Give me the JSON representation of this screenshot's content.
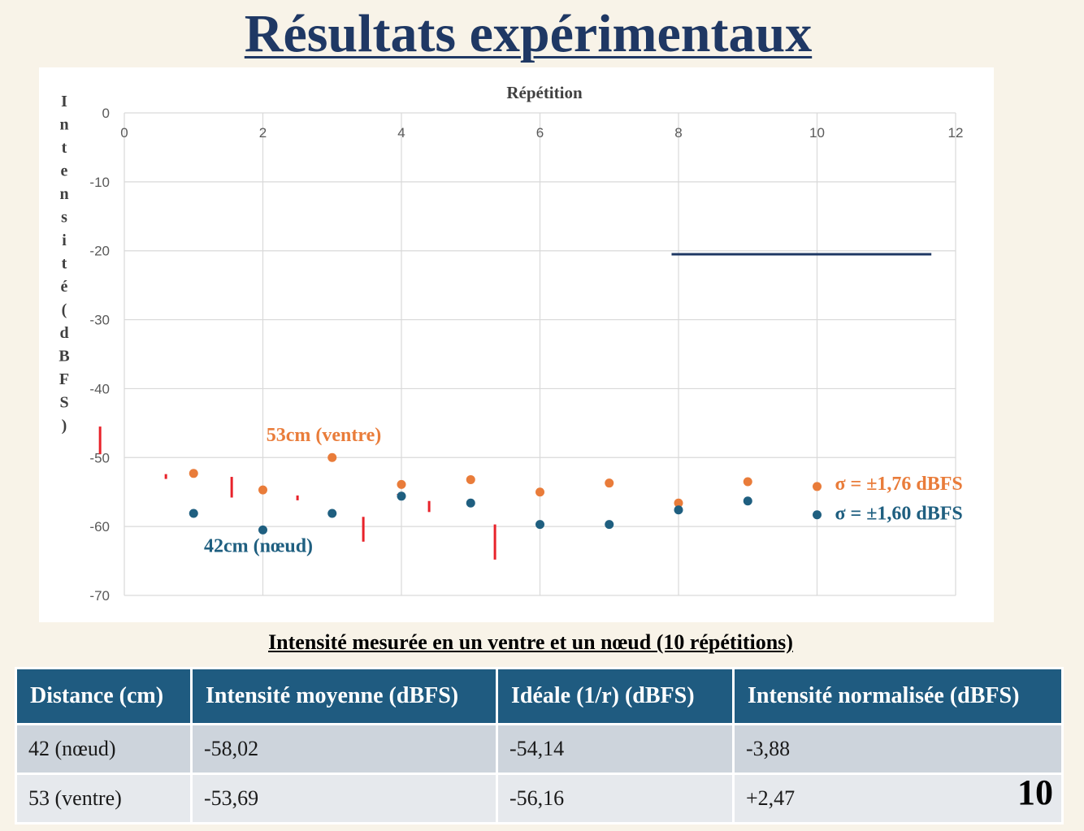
{
  "slide": {
    "title": "Résultats expérimentaux",
    "page_number": "10"
  },
  "chart_data": {
    "type": "scatter",
    "title": "Répétition",
    "xlabel": "Répétition",
    "ylabel": "Intensité (dBFS)",
    "xlim": [
      0,
      12
    ],
    "ylim": [
      -70,
      0
    ],
    "x_ticks": [
      "0",
      "2",
      "4",
      "6",
      "8",
      "10",
      "12"
    ],
    "y_ticks": [
      "0",
      "-10",
      "-20",
      "-30",
      "-40",
      "-50",
      "-60",
      "-70"
    ],
    "grid": true,
    "series": [
      {
        "name": "53cm (ventre)",
        "color": "#e97c3a",
        "x": [
          1,
          2,
          3,
          4,
          5,
          6,
          7,
          8,
          9,
          10
        ],
        "y": [
          -52.3,
          -54.7,
          -50.0,
          -53.9,
          -53.2,
          -55.0,
          -53.7,
          -56.6,
          -53.5,
          -54.2
        ],
        "annotation": "σ = ±1,76 dBFS"
      },
      {
        "name": "42cm (nœud)",
        "color": "#1f5f80",
        "x": [
          1,
          2,
          3,
          4,
          5,
          6,
          7,
          8,
          9,
          10
        ],
        "y": [
          -58.1,
          -60.5,
          -58.1,
          -55.6,
          -56.6,
          -59.7,
          -59.7,
          -57.6,
          -56.3,
          -58.3
        ],
        "annotation": "σ = ±1,60 dBFS"
      }
    ],
    "reference_line": {
      "color": "#1f3864",
      "x": [
        7.9,
        11.65
      ],
      "y": -20.5
    },
    "error_bar_color": "#e8222a"
  },
  "table": {
    "caption": "Intensité mesurée en un ventre et un nœud (10 répétitions)",
    "headers": [
      "Distance (cm)",
      "Intensité moyenne (dBFS)",
      "Idéale (1/r) (dBFS)",
      "Intensité normalisée (dBFS)"
    ],
    "rows": [
      [
        "42 (nœud)",
        "-58,02",
        "-54,14",
        "-3,88"
      ],
      [
        "53 (ventre)",
        "-53,69",
        "-56,16",
        "+2,47"
      ]
    ]
  }
}
